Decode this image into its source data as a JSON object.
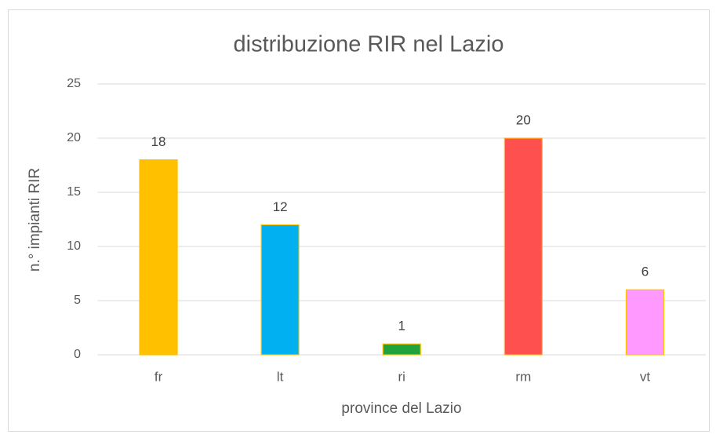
{
  "chart_data": {
    "type": "bar",
    "title": "distribuzione RIR nel Lazio",
    "x_label": "province del Lazio",
    "y_label": "n.° impianti RIR",
    "categories": [
      "fr",
      "lt",
      "ri",
      "rm",
      "vt"
    ],
    "values": [
      18,
      12,
      1,
      20,
      6
    ],
    "colors": [
      "#ffc000",
      "#00b0f0",
      "#1fa33a",
      "#ff5050",
      "#ff99ff"
    ],
    "edgecolor": "#ffc000",
    "ylim": [
      0,
      25
    ],
    "yticks": [
      0,
      5,
      10,
      15,
      20,
      25
    ],
    "grid": true
  }
}
